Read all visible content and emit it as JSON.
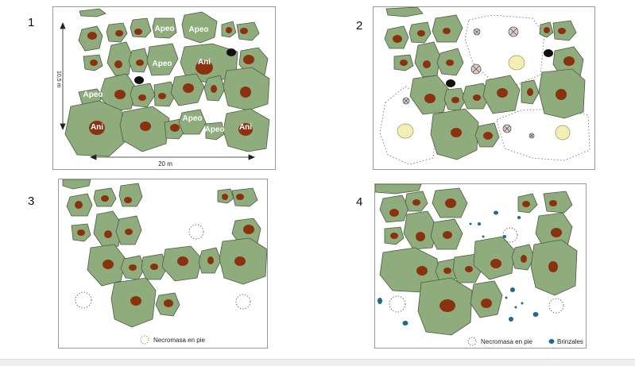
{
  "panels": [
    {
      "number": "1"
    },
    {
      "number": "2"
    },
    {
      "number": "3"
    },
    {
      "number": "4"
    }
  ],
  "labels": {
    "apeo": "Apeo",
    "ani": "Ani",
    "height_dim": "10,5 m",
    "width_dim": "20 m"
  },
  "legend": {
    "necromasa": "Necromasa en pie",
    "brinzales": "Brinzales"
  },
  "colors": {
    "crown": "#8fac7c",
    "crown_stroke": "#4d5a45",
    "trunk": "#8a3210",
    "removed_trunk": "#f3eeb4",
    "necromasa_stroke": "#555555",
    "brinzal": "#1f6b8e",
    "stump": "#111111"
  }
}
